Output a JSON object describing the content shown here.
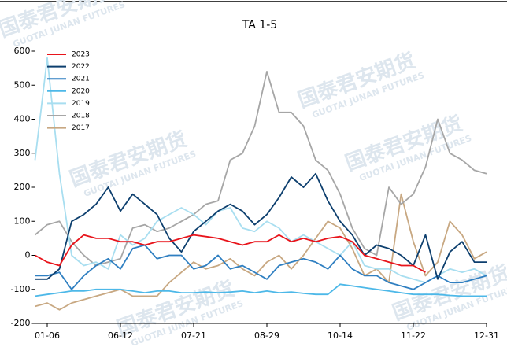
{
  "chart_data": {
    "type": "line",
    "title": "TA 1-5",
    "watermark": "国泰君安期货",
    "watermark_en": "GUOTAI JUNAN FUTURES",
    "categories": [
      null,
      "01-06",
      null,
      null,
      null,
      null,
      null,
      "06-12",
      null,
      null,
      null,
      null,
      null,
      "07-21",
      null,
      null,
      null,
      null,
      null,
      "08-29",
      null,
      null,
      null,
      null,
      null,
      "10-14",
      null,
      null,
      null,
      null,
      null,
      "11-22",
      null,
      null,
      null,
      null,
      null,
      "12-31"
    ],
    "ylim": [
      -200,
      600
    ],
    "yticks": [
      -200,
      -100,
      0,
      100,
      200,
      300,
      400,
      500,
      600
    ],
    "legend": "upper left",
    "series": [
      {
        "name": "2023",
        "color": "#e8141b",
        "values": [
          0,
          -20,
          -30,
          30,
          60,
          50,
          50,
          40,
          40,
          30,
          40,
          40,
          50,
          60,
          55,
          50,
          40,
          30,
          40,
          40,
          60,
          40,
          50,
          40,
          50,
          55,
          40,
          0,
          -10,
          -20,
          -30,
          -30,
          -50,
          null,
          null,
          null,
          null,
          null
        ]
      },
      {
        "name": "2022",
        "color": "#0d3f6e",
        "values": [
          -70,
          -70,
          -40,
          100,
          120,
          150,
          200,
          130,
          180,
          150,
          120,
          50,
          10,
          70,
          100,
          130,
          150,
          130,
          90,
          120,
          170,
          230,
          200,
          240,
          160,
          100,
          60,
          0,
          30,
          20,
          0,
          -30,
          60,
          -70,
          10,
          40,
          -20,
          -20
        ]
      },
      {
        "name": "2021",
        "color": "#2f7fc1",
        "values": [
          -60,
          -60,
          -50,
          -100,
          -60,
          -30,
          -10,
          -40,
          20,
          30,
          -10,
          0,
          0,
          -40,
          -30,
          0,
          -40,
          -30,
          -50,
          -70,
          -30,
          -20,
          -10,
          -20,
          -40,
          0,
          -40,
          -60,
          -60,
          -80,
          -90,
          -100,
          -80,
          -60,
          -80,
          -80,
          -70,
          -60
        ]
      },
      {
        "name": "2020",
        "color": "#4db8e8",
        "values": [
          -120,
          -115,
          -110,
          -105,
          -105,
          -100,
          -100,
          -100,
          -105,
          -110,
          -105,
          -105,
          -110,
          -110,
          -108,
          -110,
          -108,
          -105,
          -110,
          -105,
          -110,
          -108,
          -112,
          -115,
          -115,
          -85,
          -90,
          -95,
          -100,
          -105,
          -110,
          -115,
          -115,
          -115,
          -118,
          -120,
          -120,
          -120
        ]
      },
      {
        "name": "2019",
        "color": "#a8def0",
        "values": [
          280,
          580,
          240,
          0,
          -30,
          -20,
          -40,
          60,
          30,
          50,
          100,
          120,
          140,
          120,
          90,
          130,
          140,
          80,
          70,
          100,
          80,
          40,
          60,
          40,
          20,
          0,
          40,
          -30,
          -40,
          -40,
          -60,
          -70,
          -80,
          -60,
          -40,
          -50,
          -40,
          -60
        ]
      },
      {
        "name": "2018",
        "color": "#a6a6a6",
        "values": [
          60,
          90,
          100,
          40,
          0,
          -30,
          -20,
          -10,
          80,
          90,
          70,
          80,
          100,
          120,
          150,
          160,
          280,
          300,
          380,
          540,
          420,
          420,
          380,
          280,
          250,
          180,
          80,
          20,
          0,
          200,
          150,
          180,
          260,
          400,
          300,
          280,
          250,
          240
        ]
      },
      {
        "name": "2017",
        "color": "#c8a882",
        "values": [
          -150,
          -140,
          -160,
          -140,
          -130,
          -120,
          -110,
          -100,
          -120,
          -120,
          -120,
          -80,
          -50,
          -20,
          -40,
          -30,
          -10,
          -40,
          -60,
          -20,
          0,
          -40,
          0,
          50,
          100,
          80,
          20,
          -60,
          -40,
          -80,
          180,
          40,
          -60,
          -20,
          100,
          60,
          -10,
          10
        ]
      }
    ]
  }
}
